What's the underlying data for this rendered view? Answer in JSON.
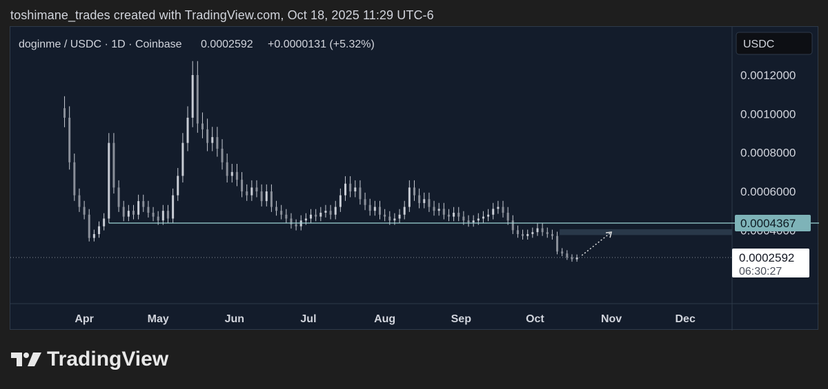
{
  "caption": "toshimane_trades created with TradingView.com, Oct 18, 2025 11:29 UTC-6",
  "legend": {
    "symbol": "doginme / USDC · 1D · Coinbase",
    "price": "0.0002592",
    "change": "+0.0000131 (+5.32%)"
  },
  "currency_button": "USDC",
  "brand": {
    "name": "TradingView",
    "logo_icon": "tradingview-logo-icon"
  },
  "colors": {
    "background": "#131c2b",
    "candle": "#c8ccd4",
    "support_line": "#9fd6d6",
    "label_support_bg": "#7eb3b8",
    "zone": "#2c3c4c"
  },
  "chart_data": {
    "type": "candlestick",
    "title": "doginme / USDC · 1D · Coinbase",
    "ylim": [
      0.0,
      0.00135
    ],
    "y_ticks": [
      "0.0012000",
      "0.0010000",
      "0.0008000",
      "0.0006000",
      "0.0004000"
    ],
    "y_tick_values": [
      0.0012,
      0.001,
      0.0008,
      0.0006,
      0.0004
    ],
    "x_ticks": [
      "Apr",
      "May",
      "Jun",
      "Jul",
      "Aug",
      "Sep",
      "Oct",
      "Nov",
      "Dec"
    ],
    "x_tick_dates": [
      "2025-04-01",
      "2025-05-01",
      "2025-06-01",
      "2025-07-01",
      "2025-08-01",
      "2025-09-01",
      "2025-10-01",
      "2025-11-01",
      "2025-12-01"
    ],
    "x_range": [
      "2025-03-02",
      "2025-12-20"
    ],
    "series_close": [
      [
        "2025-03-24",
        0.00098
      ],
      [
        "2025-03-26",
        0.00075
      ],
      [
        "2025-03-28",
        0.00058
      ],
      [
        "2025-03-30",
        0.00052
      ],
      [
        "2025-04-01",
        0.00048
      ],
      [
        "2025-04-03",
        0.00036
      ],
      [
        "2025-04-05",
        0.00038
      ],
      [
        "2025-04-07",
        0.00042
      ],
      [
        "2025-04-09",
        0.00046
      ],
      [
        "2025-04-11",
        0.00085
      ],
      [
        "2025-04-13",
        0.00062
      ],
      [
        "2025-04-15",
        0.00052
      ],
      [
        "2025-04-17",
        0.00047
      ],
      [
        "2025-04-19",
        0.0005
      ],
      [
        "2025-04-21",
        0.00048
      ],
      [
        "2025-04-23",
        0.00055
      ],
      [
        "2025-04-25",
        0.00052
      ],
      [
        "2025-04-27",
        0.00049
      ],
      [
        "2025-04-29",
        0.00047
      ],
      [
        "2025-05-01",
        0.00045
      ],
      [
        "2025-05-03",
        0.0005
      ],
      [
        "2025-05-05",
        0.00046
      ],
      [
        "2025-05-07",
        0.00058
      ],
      [
        "2025-05-09",
        0.00068
      ],
      [
        "2025-05-11",
        0.00085
      ],
      [
        "2025-05-13",
        0.00098
      ],
      [
        "2025-05-15",
        0.0012
      ],
      [
        "2025-05-17",
        0.00095
      ],
      [
        "2025-05-19",
        0.00092
      ],
      [
        "2025-05-21",
        0.00085
      ],
      [
        "2025-05-23",
        0.00088
      ],
      [
        "2025-05-25",
        0.00082
      ],
      [
        "2025-05-27",
        0.00075
      ],
      [
        "2025-05-29",
        0.00068
      ],
      [
        "2025-05-31",
        0.0007
      ],
      [
        "2025-06-02",
        0.00066
      ],
      [
        "2025-06-04",
        0.0006
      ],
      [
        "2025-06-06",
        0.00058
      ],
      [
        "2025-06-08",
        0.00062
      ],
      [
        "2025-06-10",
        0.0006
      ],
      [
        "2025-06-12",
        0.00055
      ],
      [
        "2025-06-14",
        0.0006
      ],
      [
        "2025-06-16",
        0.00052
      ],
      [
        "2025-06-18",
        0.0005
      ],
      [
        "2025-06-20",
        0.00048
      ],
      [
        "2025-06-22",
        0.00046
      ],
      [
        "2025-06-24",
        0.00043
      ],
      [
        "2025-06-26",
        0.00042
      ],
      [
        "2025-06-28",
        0.00045
      ],
      [
        "2025-06-30",
        0.00046
      ],
      [
        "2025-07-02",
        0.00048
      ],
      [
        "2025-07-04",
        0.00047
      ],
      [
        "2025-07-06",
        0.00049
      ],
      [
        "2025-07-08",
        0.0005
      ],
      [
        "2025-07-10",
        0.00048
      ],
      [
        "2025-07-12",
        0.00052
      ],
      [
        "2025-07-14",
        0.00058
      ],
      [
        "2025-07-16",
        0.00064
      ],
      [
        "2025-07-18",
        0.0006
      ],
      [
        "2025-07-20",
        0.00062
      ],
      [
        "2025-07-22",
        0.00056
      ],
      [
        "2025-07-24",
        0.00053
      ],
      [
        "2025-07-26",
        0.0005
      ],
      [
        "2025-07-28",
        0.00052
      ],
      [
        "2025-07-30",
        0.00048
      ],
      [
        "2025-08-01",
        0.00047
      ],
      [
        "2025-08-03",
        0.00045
      ],
      [
        "2025-08-05",
        0.00046
      ],
      [
        "2025-08-07",
        0.00048
      ],
      [
        "2025-08-09",
        0.00052
      ],
      [
        "2025-08-11",
        0.00062
      ],
      [
        "2025-08-13",
        0.00058
      ],
      [
        "2025-08-15",
        0.00054
      ],
      [
        "2025-08-17",
        0.00056
      ],
      [
        "2025-08-19",
        0.00052
      ],
      [
        "2025-08-21",
        0.0005
      ],
      [
        "2025-08-23",
        0.00051
      ],
      [
        "2025-08-25",
        0.00048
      ],
      [
        "2025-08-27",
        0.00047
      ],
      [
        "2025-08-29",
        0.00049
      ],
      [
        "2025-08-31",
        0.00047
      ],
      [
        "2025-09-02",
        0.00045
      ],
      [
        "2025-09-04",
        0.00044
      ],
      [
        "2025-09-06",
        0.00045
      ],
      [
        "2025-09-08",
        0.00046
      ],
      [
        "2025-09-10",
        0.00047
      ],
      [
        "2025-09-12",
        0.00048
      ],
      [
        "2025-09-14",
        0.00051
      ],
      [
        "2025-09-16",
        0.00052
      ],
      [
        "2025-09-18",
        0.00049
      ],
      [
        "2025-09-20",
        0.00045
      ],
      [
        "2025-09-22",
        0.0004
      ],
      [
        "2025-09-24",
        0.00038
      ],
      [
        "2025-09-26",
        0.00037
      ],
      [
        "2025-09-28",
        0.00038
      ],
      [
        "2025-09-30",
        0.00039
      ],
      [
        "2025-10-02",
        0.00041
      ],
      [
        "2025-10-04",
        0.00039
      ],
      [
        "2025-10-06",
        0.00038
      ],
      [
        "2025-10-08",
        0.00037
      ],
      [
        "2025-10-10",
        0.00029
      ],
      [
        "2025-10-12",
        0.00028
      ],
      [
        "2025-10-14",
        0.00026
      ],
      [
        "2025-10-16",
        0.00025
      ],
      [
        "2025-10-18",
        0.0002592
      ]
    ],
    "support_line": {
      "value": 0.0004367,
      "label": "0.0004367",
      "from": "2025-04-11"
    },
    "current_price": {
      "value": 0.0002592,
      "label": "0.0002592",
      "countdown": "06:30:27"
    },
    "resistance_zone": {
      "from": "2025-10-11",
      "to": "2025-12-20",
      "low": 0.000375,
      "high": 0.000405
    },
    "projection_arrow": {
      "from": [
        "2025-10-20",
        0.00027
      ],
      "to": [
        "2025-11-01",
        0.00039
      ]
    }
  }
}
